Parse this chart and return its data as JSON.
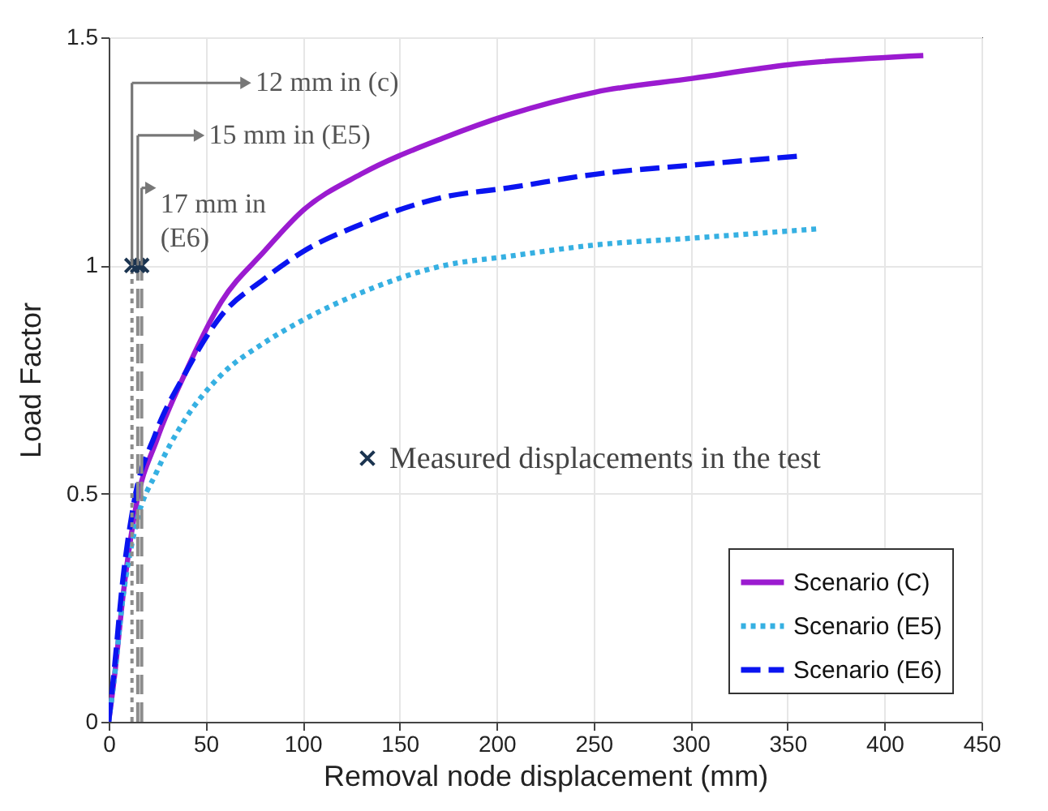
{
  "chart_data": {
    "type": "line",
    "xlabel": "Removal node displacement (mm)",
    "ylabel": "Load Factor",
    "xlim": [
      0,
      450
    ],
    "ylim": [
      0,
      1.5
    ],
    "xticks": [
      0,
      50,
      100,
      150,
      200,
      250,
      300,
      350,
      400,
      450
    ],
    "yticks": [
      0,
      0.5,
      1,
      1.5
    ],
    "grid": true,
    "legend": "bottom right",
    "series": [
      {
        "name": "Scenario (C)",
        "color": "#9b1bd0",
        "line_style": "solid",
        "x": [
          0,
          3,
          7.5,
          14,
          25,
          39,
          58,
          80,
          100,
          130,
          173,
          206,
          251,
          301,
          351,
          420
        ],
        "values": [
          0,
          0.1,
          0.28,
          0.47,
          0.62,
          0.76,
          0.92,
          1.03,
          1.12,
          1.2,
          1.28,
          1.33,
          1.38,
          1.41,
          1.44,
          1.46
        ]
      },
      {
        "name": "Scenario (E5)",
        "color": "#36b0e2",
        "line_style": "dotted",
        "x": [
          0,
          3,
          7,
          14,
          25,
          39,
          58,
          80,
          100,
          130,
          173,
          206,
          251,
          301,
          365
        ],
        "values": [
          0,
          0.1,
          0.26,
          0.43,
          0.55,
          0.66,
          0.76,
          0.83,
          0.88,
          0.94,
          1.0,
          1.02,
          1.045,
          1.06,
          1.08
        ]
      },
      {
        "name": "Scenario (E6)",
        "color": "#0a14f0",
        "line_style": "dashed",
        "x": [
          0,
          3,
          7,
          13,
          24,
          39,
          58,
          80,
          100,
          130,
          173,
          206,
          251,
          301,
          357
        ],
        "values": [
          0,
          0.12,
          0.3,
          0.48,
          0.63,
          0.76,
          0.89,
          0.97,
          1.03,
          1.09,
          1.15,
          1.17,
          1.2,
          1.22,
          1.24
        ]
      },
      {
        "color": "#8c8c8c",
        "line_style": "dotted",
        "x": [
          12,
          12
        ],
        "values": [
          0,
          1
        ]
      },
      {
        "color": "#8c8c8c",
        "line_style": "dashed",
        "x": [
          15,
          15
        ],
        "values": [
          0,
          1
        ]
      },
      {
        "color": "#8c8c8c",
        "line_style": "dashed",
        "x": [
          17,
          17
        ],
        "values": [
          0,
          1
        ]
      },
      {
        "name": "Measured displacements in the test",
        "type": "scatter",
        "marker": "cross",
        "color": "#1b3450",
        "x": [
          12,
          15,
          17
        ],
        "values": [
          1,
          1,
          1
        ]
      }
    ],
    "annotations": [
      "12 mm in (c)",
      "15 mm in (E5)",
      {
        "text": "17 mm in (E6)",
        "x": 17,
        "y": 1
      }
    ]
  }
}
